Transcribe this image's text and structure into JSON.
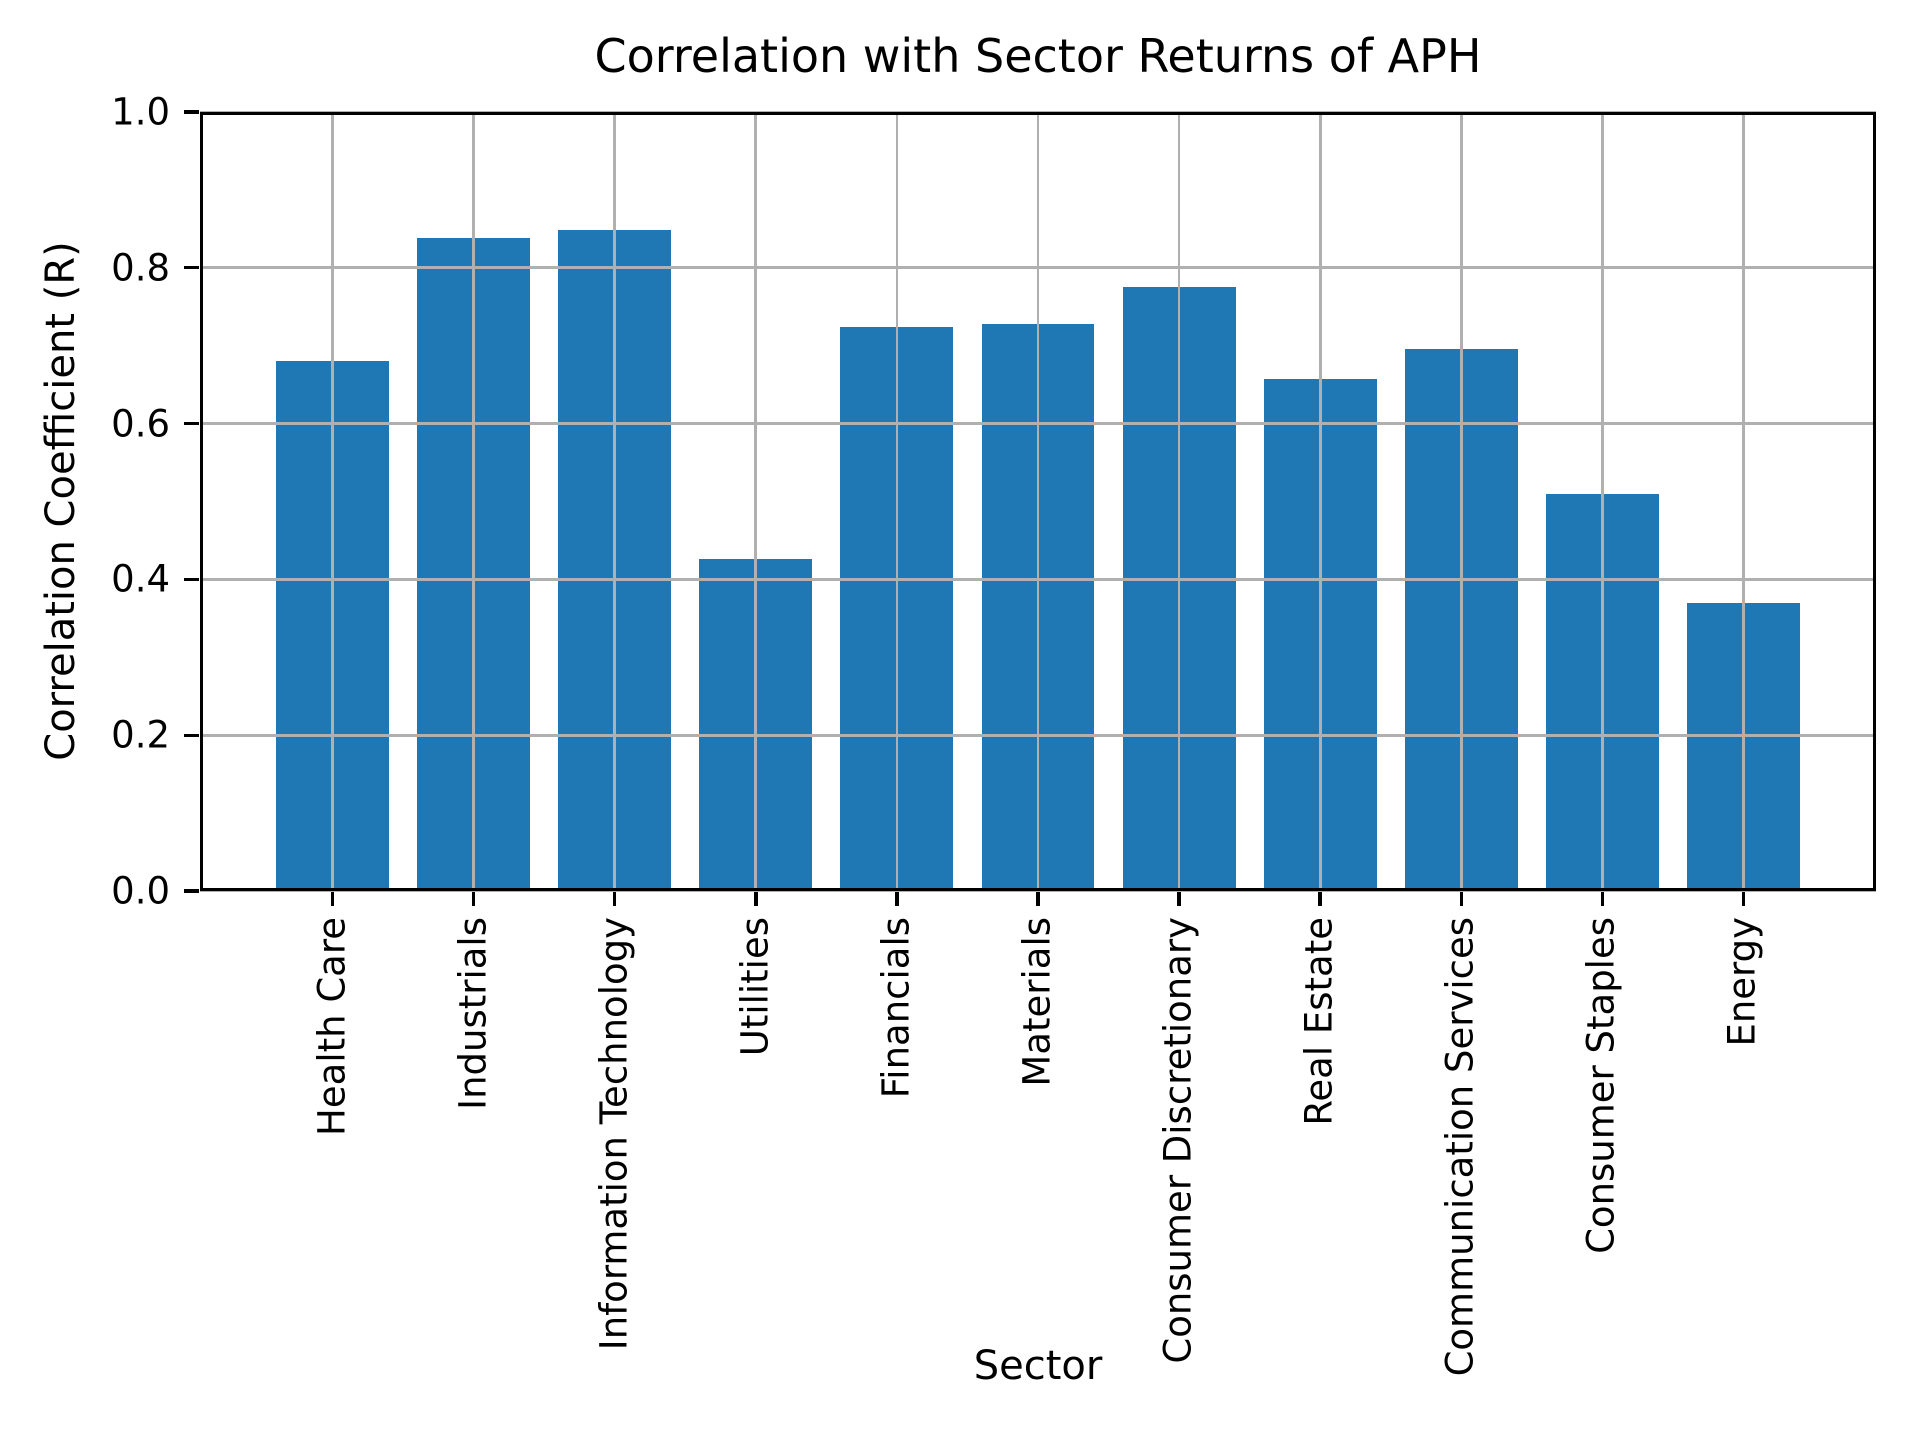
{
  "chart_data": {
    "type": "bar",
    "title": "Correlation with Sector Returns of APH",
    "xlabel": "Sector",
    "ylabel": "Correlation Coefficient (R)",
    "categories": [
      "Health Care",
      "Industrials",
      "Information Technology",
      "Utilities",
      "Financials",
      "Materials",
      "Consumer Discretionary",
      "Real Estate",
      "Communication Services",
      "Consumer Staples",
      "Energy"
    ],
    "values": [
      0.68,
      0.838,
      0.848,
      0.426,
      0.724,
      0.728,
      0.775,
      0.657,
      0.696,
      0.51,
      0.37
    ],
    "ylim": [
      0.0,
      1.0
    ],
    "yticks": [
      0.0,
      0.2,
      0.4,
      0.6,
      0.8,
      1.0
    ],
    "ytick_labels": [
      "0.0",
      "0.2",
      "0.4",
      "0.6",
      "0.8",
      "1.0"
    ],
    "bar_color": "#1f77b4",
    "bar_width_ratio": 0.8,
    "grid": true,
    "grid_color": "#b0b0b0",
    "legend": "none",
    "x_tick_rotation_deg": 90
  }
}
